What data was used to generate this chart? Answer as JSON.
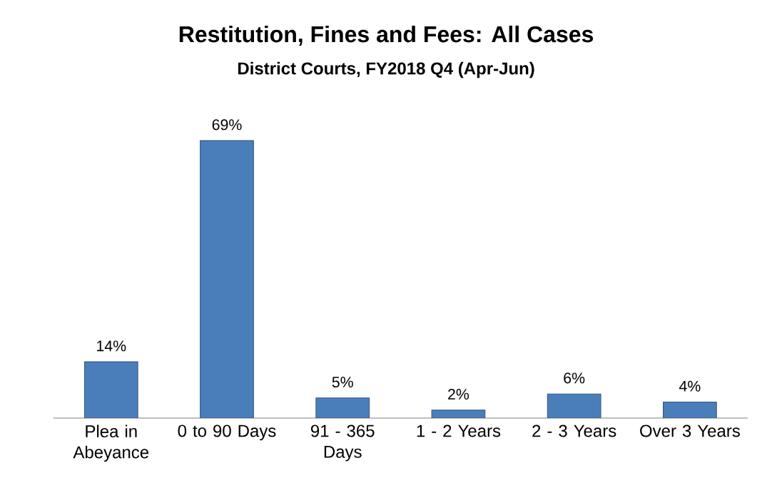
{
  "chart_data": {
    "type": "bar",
    "title": "Restitution,  Fines and Fees: All Cases",
    "subtitle": "District Courts, FY2018 Q4 (Apr-Jun)",
    "categories": [
      "Plea in Abeyance",
      "0 to 90 Days",
      "91 - 365 Days",
      "1 - 2 Years",
      "2 - 3 Years",
      "Over 3 Years"
    ],
    "values": [
      14,
      69,
      5,
      2,
      6,
      4
    ],
    "value_labels": [
      "14%",
      "69%",
      "5%",
      "2%",
      "6%",
      "4%"
    ],
    "color": "#4a7ebb"
  }
}
